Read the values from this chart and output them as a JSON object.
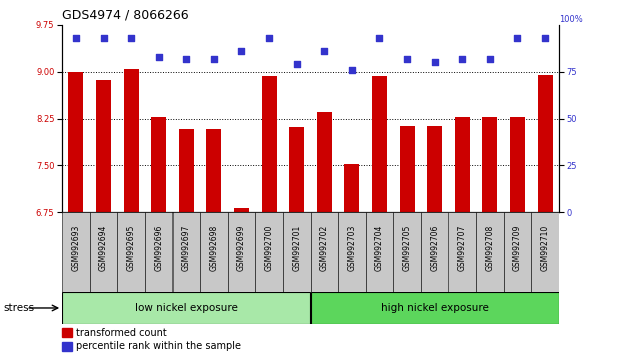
{
  "title": "GDS4974 / 8066266",
  "samples": [
    "GSM992693",
    "GSM992694",
    "GSM992695",
    "GSM992696",
    "GSM992697",
    "GSM992698",
    "GSM992699",
    "GSM992700",
    "GSM992701",
    "GSM992702",
    "GSM992703",
    "GSM992704",
    "GSM992705",
    "GSM992706",
    "GSM992707",
    "GSM992708",
    "GSM992709",
    "GSM992710"
  ],
  "bar_values": [
    9.0,
    8.87,
    9.04,
    8.28,
    8.08,
    8.08,
    6.82,
    8.93,
    8.12,
    8.36,
    7.52,
    8.93,
    8.13,
    8.13,
    8.27,
    8.27,
    8.27,
    8.95
  ],
  "blue_values": [
    93,
    93,
    93,
    83,
    82,
    82,
    86,
    93,
    79,
    86,
    76,
    93,
    82,
    80,
    82,
    82,
    93,
    93
  ],
  "ylim_left": [
    6.75,
    9.75
  ],
  "ylim_right": [
    0,
    100
  ],
  "yticks_left": [
    6.75,
    7.5,
    8.25,
    9.0,
    9.75
  ],
  "yticks_right": [
    0,
    25,
    50,
    75,
    100
  ],
  "bar_color": "#cc0000",
  "blue_color": "#3333cc",
  "grid_lines": [
    7.5,
    8.25,
    9.0
  ],
  "group1_label": "low nickel exposure",
  "group2_label": "high nickel exposure",
  "group1_count": 9,
  "stress_label": "stress",
  "legend1": "transformed count",
  "legend2": "percentile rank within the sample",
  "bg_xlabel": "#c8c8c8",
  "bg_group1": "#a8e8a8",
  "bg_group2": "#5cd65c",
  "title_fontsize": 9,
  "tick_fontsize": 6,
  "xlabel_fontsize": 5.5,
  "label_fontsize": 7.5
}
